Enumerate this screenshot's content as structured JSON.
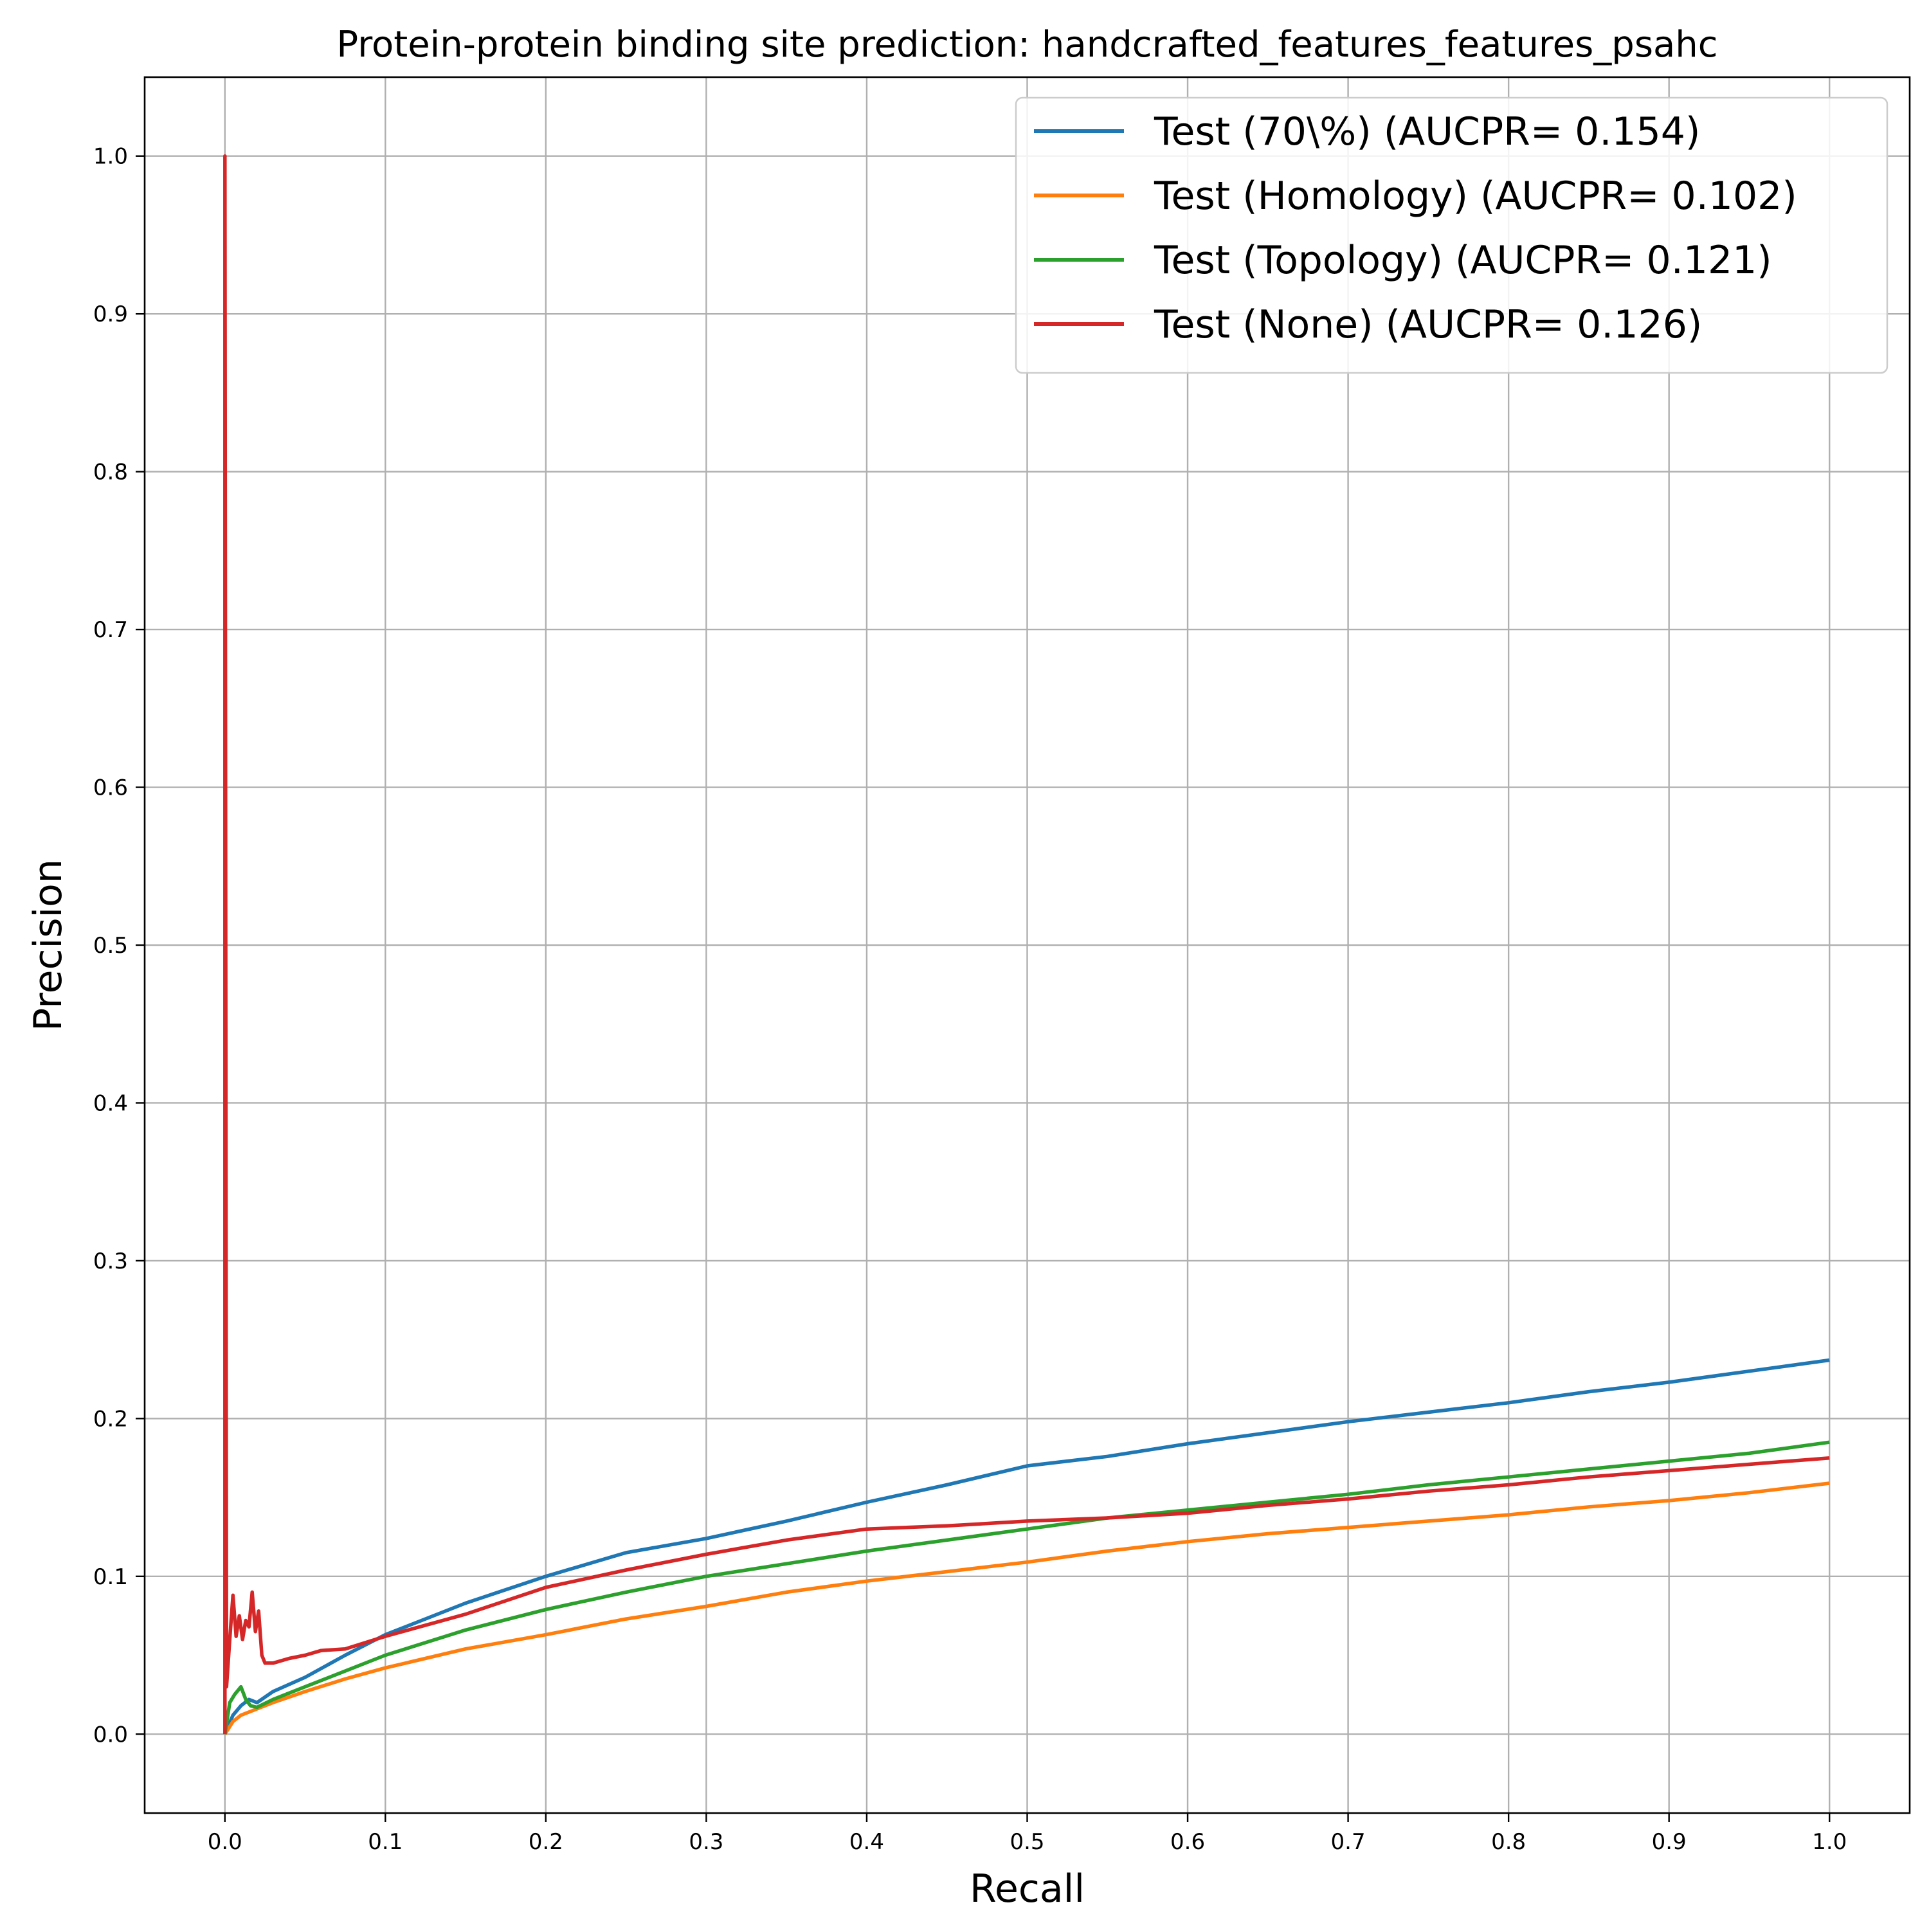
{
  "chart_data": {
    "type": "line",
    "title": "Protein-protein binding site prediction: handcrafted_features_features_psahc",
    "xlabel": "Recall",
    "ylabel": "Precision",
    "xlim": [
      -0.05,
      1.05
    ],
    "ylim": [
      -0.05,
      1.05
    ],
    "xticks": [
      "0.0",
      "0.1",
      "0.2",
      "0.3",
      "0.4",
      "0.5",
      "0.6",
      "0.7",
      "0.8",
      "0.9",
      "1.0"
    ],
    "yticks": [
      "0.0",
      "0.1",
      "0.2",
      "0.3",
      "0.4",
      "0.5",
      "0.6",
      "0.7",
      "0.8",
      "0.9",
      "1.0"
    ],
    "grid": true,
    "legend_position": "top-right",
    "series": [
      {
        "name": "Test (70\\%) (AUCPR= 0.154)",
        "color": "#1f77b4",
        "x": [
          0.0,
          0.005,
          0.01,
          0.015,
          0.02,
          0.03,
          0.05,
          0.075,
          0.1,
          0.15,
          0.2,
          0.25,
          0.3,
          0.35,
          0.4,
          0.45,
          0.5,
          0.55,
          0.6,
          0.65,
          0.7,
          0.75,
          0.8,
          0.85,
          0.9,
          0.95,
          1.0
        ],
        "y": [
          0.0,
          0.012,
          0.018,
          0.022,
          0.02,
          0.027,
          0.036,
          0.05,
          0.063,
          0.083,
          0.1,
          0.115,
          0.124,
          0.135,
          0.147,
          0.158,
          0.17,
          0.176,
          0.184,
          0.191,
          0.198,
          0.204,
          0.21,
          0.217,
          0.223,
          0.23,
          0.237
        ]
      },
      {
        "name": "Test (Homology) (AUCPR= 0.102)",
        "color": "#ff7f0e",
        "x": [
          0.0,
          0.005,
          0.01,
          0.02,
          0.03,
          0.05,
          0.075,
          0.1,
          0.15,
          0.2,
          0.25,
          0.3,
          0.35,
          0.4,
          0.45,
          0.5,
          0.55,
          0.6,
          0.65,
          0.7,
          0.75,
          0.8,
          0.85,
          0.9,
          0.95,
          1.0
        ],
        "y": [
          0.0,
          0.008,
          0.012,
          0.016,
          0.02,
          0.027,
          0.035,
          0.042,
          0.054,
          0.063,
          0.073,
          0.081,
          0.09,
          0.097,
          0.103,
          0.109,
          0.116,
          0.122,
          0.127,
          0.131,
          0.135,
          0.139,
          0.144,
          0.148,
          0.153,
          0.159
        ]
      },
      {
        "name": "Test (Topology) (AUCPR= 0.121)",
        "color": "#2ca02c",
        "x": [
          0.0,
          0.003,
          0.006,
          0.01,
          0.013,
          0.016,
          0.02,
          0.03,
          0.05,
          0.075,
          0.1,
          0.15,
          0.2,
          0.25,
          0.3,
          0.35,
          0.4,
          0.45,
          0.5,
          0.55,
          0.6,
          0.65,
          0.7,
          0.75,
          0.8,
          0.85,
          0.9,
          0.95,
          1.0
        ],
        "y": [
          0.0,
          0.02,
          0.025,
          0.03,
          0.022,
          0.018,
          0.017,
          0.022,
          0.03,
          0.04,
          0.05,
          0.066,
          0.079,
          0.09,
          0.1,
          0.108,
          0.116,
          0.123,
          0.13,
          0.137,
          0.142,
          0.147,
          0.152,
          0.158,
          0.163,
          0.168,
          0.173,
          0.178,
          0.185
        ]
      },
      {
        "name": "Test (None) (AUCPR= 0.126)",
        "color": "#d62728",
        "x": [
          0.0,
          0.0,
          0.001,
          0.003,
          0.005,
          0.007,
          0.009,
          0.011,
          0.013,
          0.015,
          0.017,
          0.019,
          0.021,
          0.023,
          0.025,
          0.03,
          0.04,
          0.05,
          0.06,
          0.075,
          0.1,
          0.15,
          0.2,
          0.25,
          0.3,
          0.35,
          0.4,
          0.45,
          0.5,
          0.55,
          0.6,
          0.65,
          0.7,
          0.75,
          0.8,
          0.85,
          0.9,
          0.95,
          1.0
        ],
        "y": [
          0.0,
          1.0,
          0.03,
          0.06,
          0.088,
          0.062,
          0.075,
          0.06,
          0.072,
          0.068,
          0.09,
          0.065,
          0.078,
          0.05,
          0.045,
          0.045,
          0.048,
          0.05,
          0.053,
          0.054,
          0.062,
          0.076,
          0.093,
          0.104,
          0.114,
          0.123,
          0.13,
          0.132,
          0.135,
          0.137,
          0.14,
          0.145,
          0.149,
          0.154,
          0.158,
          0.163,
          0.167,
          0.171,
          0.175
        ]
      }
    ]
  }
}
